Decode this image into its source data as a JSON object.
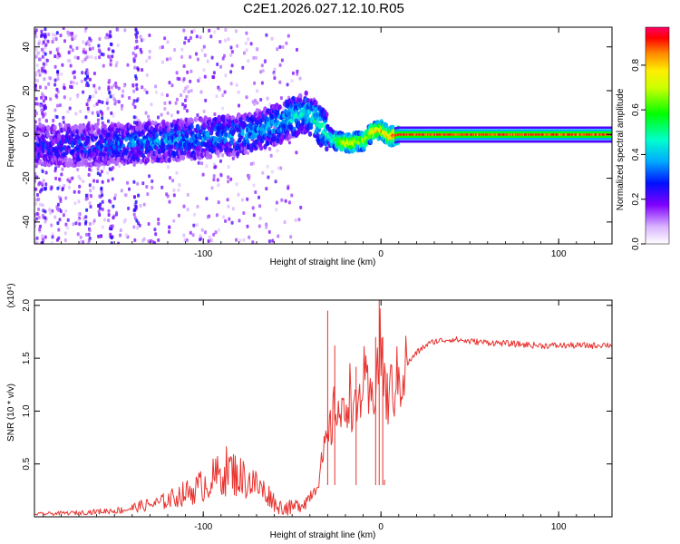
{
  "page": {
    "title": "C2E1.2026.027.12.10.R05"
  },
  "chart_data": [
    {
      "id": "spectrogram",
      "type": "heatmap",
      "xlabel": "Height of straight line (km)",
      "ylabel": "Frequency (Hz)",
      "xlim": [
        -195,
        130
      ],
      "ylim": [
        -50,
        49
      ],
      "x_ticks": [
        {
          "value": -100,
          "label": "-100"
        },
        {
          "value": 0,
          "label": "0"
        },
        {
          "value": 100,
          "label": "100"
        }
      ],
      "y_ticks": [
        {
          "value": -40,
          "label": "-40"
        },
        {
          "value": -20,
          "label": "-20"
        },
        {
          "value": 0,
          "label": "0"
        },
        {
          "value": 20,
          "label": "20"
        },
        {
          "value": 40,
          "label": "40"
        }
      ],
      "ridge": [
        {
          "x": -195,
          "freq": -5,
          "amp": 0.25
        },
        {
          "x": -160,
          "freq": -5,
          "amp": 0.3
        },
        {
          "x": -120,
          "freq": -3,
          "amp": 0.35
        },
        {
          "x": -80,
          "freq": 0,
          "amp": 0.35
        },
        {
          "x": -60,
          "freq": 4,
          "amp": 0.4
        },
        {
          "x": -50,
          "freq": 8,
          "amp": 0.45
        },
        {
          "x": -42,
          "freq": 10,
          "amp": 0.45
        },
        {
          "x": -35,
          "freq": 5,
          "amp": 0.5
        },
        {
          "x": -28,
          "freq": -2,
          "amp": 0.55
        },
        {
          "x": -20,
          "freq": -4,
          "amp": 0.8
        },
        {
          "x": -10,
          "freq": -3,
          "amp": 0.7
        },
        {
          "x": -5,
          "freq": 1,
          "amp": 0.8
        },
        {
          "x": 0,
          "freq": 2,
          "amp": 0.85
        },
        {
          "x": 5,
          "freq": -1,
          "amp": 0.9
        },
        {
          "x": 10,
          "freq": 0,
          "amp": 0.92
        },
        {
          "x": 130,
          "freq": 0,
          "amp": 0.92
        }
      ],
      "colorbar": {
        "label": "Normalized spectral amplitude",
        "ticks": [
          {
            "value": 0.0,
            "label": "0.0"
          },
          {
            "value": 0.2,
            "label": "0.2"
          },
          {
            "value": 0.4,
            "label": "0.4"
          },
          {
            "value": 0.6,
            "label": "0.6"
          },
          {
            "value": 0.8,
            "label": "0.8"
          }
        ],
        "range": [
          0,
          0.97
        ]
      }
    },
    {
      "id": "snr",
      "type": "line",
      "color": "#e8332f",
      "xlabel": "Height of straight line (km)",
      "ylabel": "SNR (10 * v/v)",
      "scale_label": "(x10⁴)",
      "xlim": [
        -195,
        130
      ],
      "ylim": [
        0,
        2.05
      ],
      "x_ticks": [
        {
          "value": -100,
          "label": "-100"
        },
        {
          "value": 0,
          "label": "0"
        },
        {
          "value": 100,
          "label": "100"
        }
      ],
      "y_ticks": [
        {
          "value": 0.5,
          "label": "0.5"
        },
        {
          "value": 1.0,
          "label": "1.0"
        },
        {
          "value": 1.5,
          "label": "1.5"
        },
        {
          "value": 2.0,
          "label": "2.0"
        }
      ],
      "series": [
        {
          "name": "SNR",
          "x": [
            -195,
            -170,
            -145,
            -135,
            -125,
            -115,
            -105,
            -98,
            -92,
            -86,
            -80,
            -72,
            -65,
            -58,
            -50,
            -42,
            -36,
            -32,
            -28,
            -25,
            -22,
            -18,
            -14,
            -10,
            -6,
            -2,
            0,
            3,
            6,
            10,
            15,
            20,
            25,
            30,
            35,
            40,
            50,
            60,
            70,
            80,
            90,
            100,
            110,
            120,
            126,
            130
          ],
          "values": [
            0.02,
            0.03,
            0.05,
            0.08,
            0.1,
            0.15,
            0.2,
            0.25,
            0.3,
            0.35,
            0.3,
            0.25,
            0.18,
            0.1,
            0.08,
            0.15,
            0.3,
            0.6,
            0.85,
            1.1,
            0.9,
            1.2,
            0.95,
            1.3,
            1.05,
            1.4,
            1.6,
            1.1,
            1.2,
            1.3,
            1.45,
            1.55,
            1.62,
            1.66,
            1.67,
            1.68,
            1.66,
            1.65,
            1.64,
            1.63,
            1.62,
            1.62,
            1.62,
            1.62,
            1.63,
            1.62
          ]
        }
      ]
    }
  ]
}
